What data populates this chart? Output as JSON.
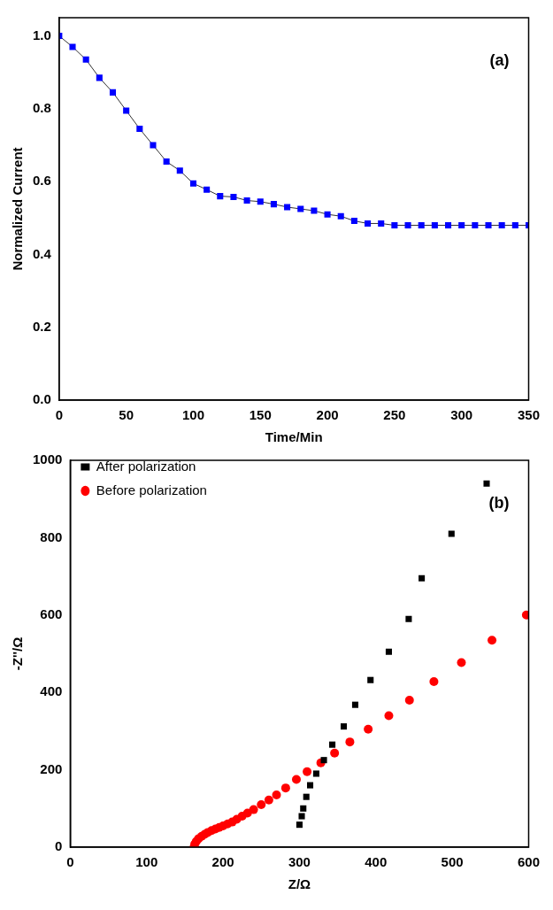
{
  "chart_data": [
    {
      "type": "line",
      "xlabel": "Time/Min",
      "ylabel": "Normalized Current",
      "annotations": [
        "(a)"
      ],
      "marker": "square",
      "line_style": "solid",
      "legend": false,
      "grid": false,
      "xlim": [
        0,
        350
      ],
      "xticks": [
        0,
        50,
        100,
        150,
        200,
        250,
        300,
        350
      ],
      "ylim": [
        0,
        1.05
      ],
      "yticks": [
        {
          "value": 0,
          "label": "0.0"
        },
        0.2,
        0.4,
        0.6,
        0.8,
        {
          "value": 1,
          "label": "1.0"
        }
      ],
      "series": [
        {
          "color": "#0000ff",
          "x": [
            0,
            10,
            20,
            30,
            40,
            50,
            60,
            70,
            80,
            90,
            100,
            110,
            120,
            130,
            140,
            150,
            160,
            170,
            180,
            190,
            200,
            210,
            220,
            230,
            240,
            250,
            260,
            270,
            280,
            290,
            300,
            310,
            320,
            330,
            340,
            350
          ],
          "values": [
            1.0,
            0.97,
            0.935,
            0.885,
            0.845,
            0.795,
            0.745,
            0.7,
            0.655,
            0.63,
            0.595,
            0.578,
            0.56,
            0.558,
            0.548,
            0.545,
            0.538,
            0.53,
            0.525,
            0.52,
            0.51,
            0.505,
            0.492,
            0.485,
            0.485,
            0.48,
            0.48,
            0.48,
            0.48,
            0.48,
            0.48,
            0.48,
            0.48,
            0.48,
            0.48,
            0.48
          ]
        }
      ]
    },
    {
      "type": "scatter",
      "xlabel": "Z/Ω",
      "ylabel": "-Z''/Ω",
      "annotations": [
        "(b)"
      ],
      "legend": "top left",
      "grid": false,
      "xlim": [
        0,
        600
      ],
      "xticks": [
        0,
        100,
        200,
        300,
        400,
        500,
        600
      ],
      "ylim": [
        0,
        1000
      ],
      "yticks": [
        0,
        200,
        400,
        600,
        800,
        1000
      ],
      "series": [
        {
          "name": "After polarization",
          "color": "#000000",
          "marker": "square",
          "x": [
            300,
            303,
            305,
            309,
            314,
            322,
            332,
            343,
            358,
            373,
            393,
            417,
            443,
            460,
            499,
            545
          ],
          "values": [
            58,
            80,
            100,
            130,
            160,
            190,
            225,
            265,
            312,
            368,
            432,
            505,
            590,
            695,
            810,
            940
          ]
        },
        {
          "name": "Before polarization",
          "color": "#ff0000",
          "marker": "circle",
          "x": [
            162,
            163,
            165,
            168,
            172,
            176,
            180,
            185,
            190,
            195,
            200,
            206,
            212,
            218,
            225,
            232,
            240,
            250,
            260,
            270,
            282,
            296,
            310,
            328,
            346,
            366,
            390,
            417,
            444,
            476,
            512,
            552,
            597
          ],
          "values": [
            0,
            8,
            15,
            22,
            28,
            33,
            38,
            43,
            47,
            51,
            55,
            60,
            65,
            72,
            80,
            88,
            97,
            110,
            122,
            135,
            153,
            175,
            195,
            218,
            243,
            272,
            305,
            340,
            380,
            428,
            477,
            535,
            600
          ]
        }
      ]
    }
  ]
}
